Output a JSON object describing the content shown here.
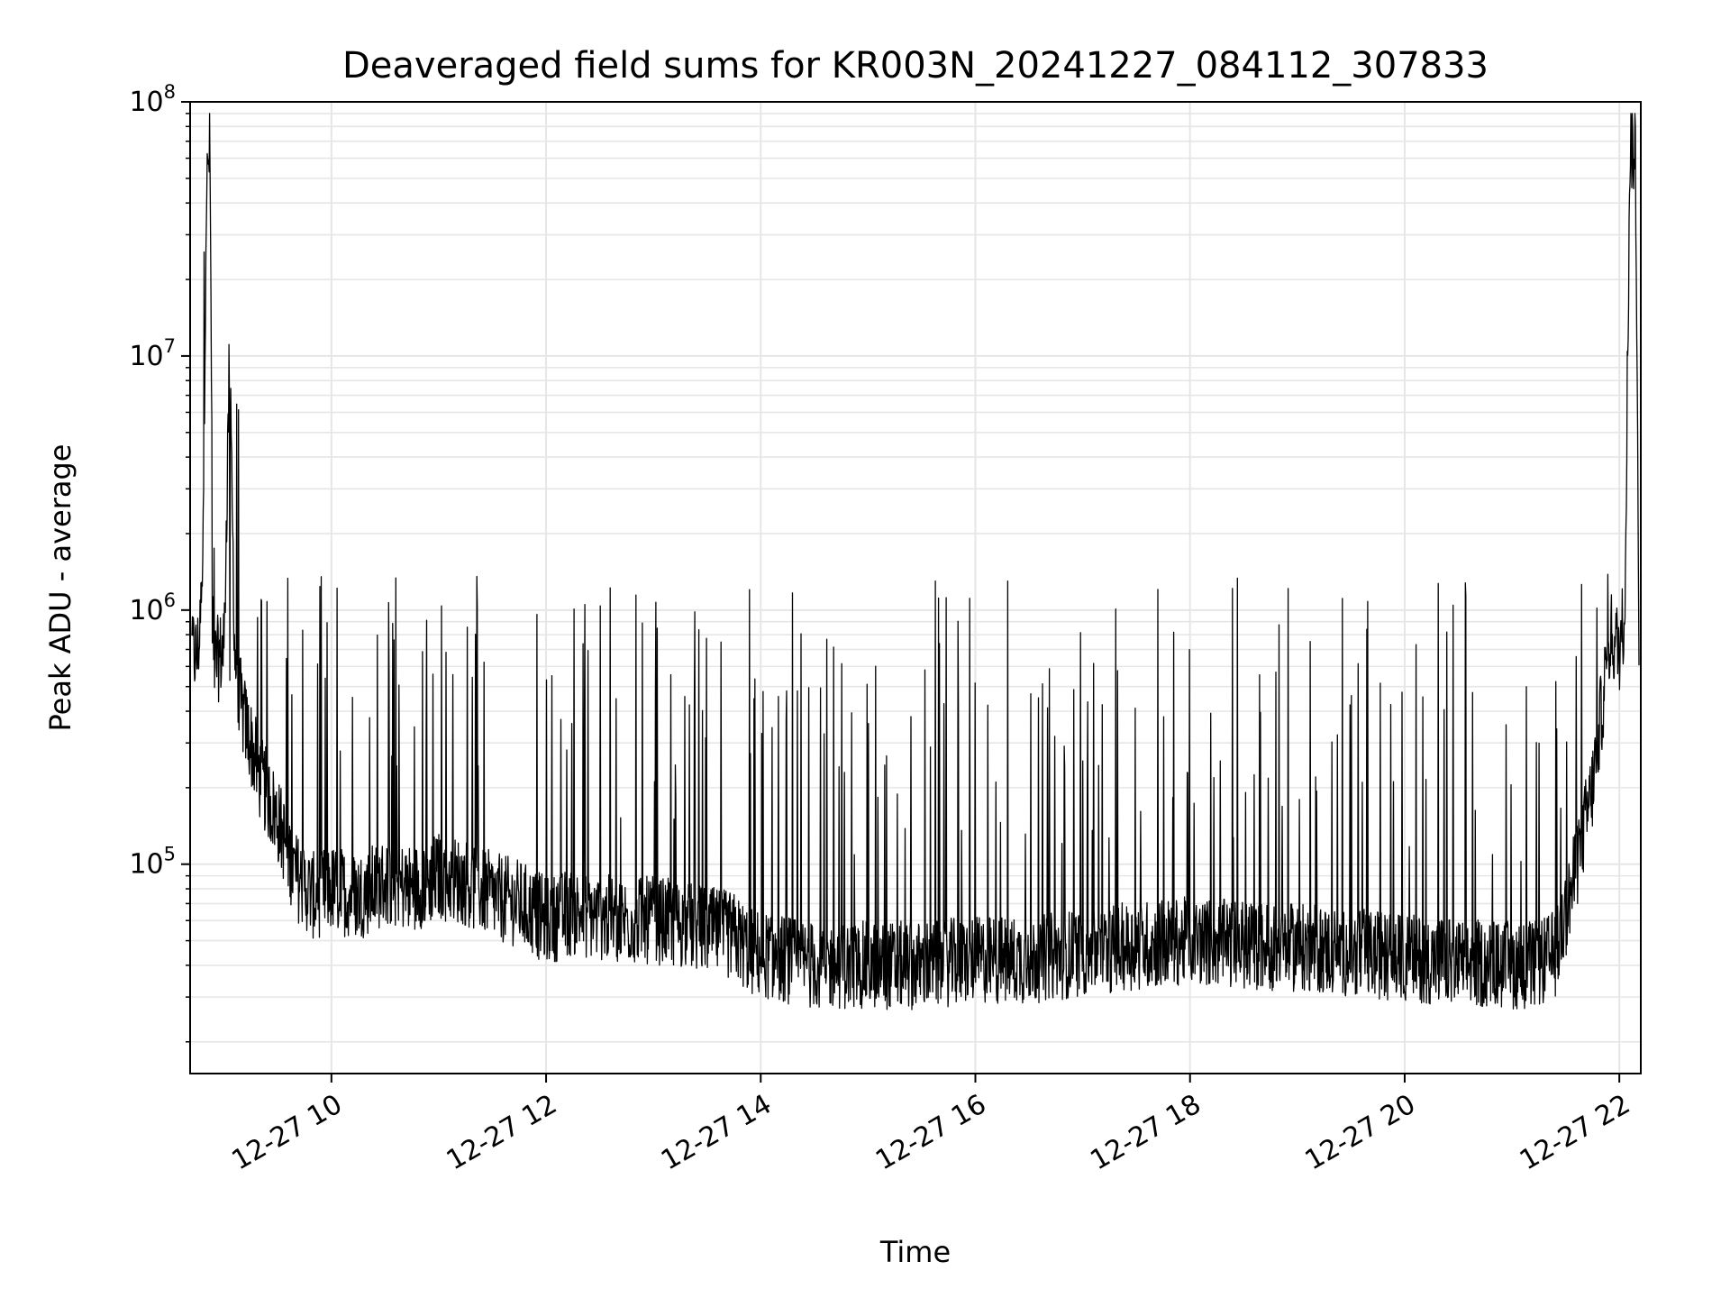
{
  "chart_data": {
    "type": "line",
    "title": "Deaveraged field sums for KR003N_20241227_084112_307833",
    "xlabel": "Time",
    "ylabel": "Peak ADU - average",
    "yscale": "log",
    "ylim": [
      15000,
      100000000
    ],
    "xlim": [
      "2024-12-27 08:41",
      "2024-12-27 22:12"
    ],
    "grid": true,
    "line_color": "#000000",
    "x_ticks": [
      {
        "value": "2024-12-27 10:00",
        "label": "12-27 10"
      },
      {
        "value": "2024-12-27 12:00",
        "label": "12-27 12"
      },
      {
        "value": "2024-12-27 14:00",
        "label": "12-27 14"
      },
      {
        "value": "2024-12-27 16:00",
        "label": "12-27 16"
      },
      {
        "value": "2024-12-27 18:00",
        "label": "12-27 18"
      },
      {
        "value": "2024-12-27 20:00",
        "label": "12-27 20"
      },
      {
        "value": "2024-12-27 22:00",
        "label": "12-27 22"
      }
    ],
    "y_ticks": [
      {
        "value": 100000,
        "base": "10",
        "exp": "5"
      },
      {
        "value": 1000000,
        "base": "10",
        "exp": "6"
      },
      {
        "value": 10000000,
        "base": "10",
        "exp": "7"
      },
      {
        "value": 100000000,
        "base": "10",
        "exp": "8"
      }
    ],
    "series": [
      {
        "x": [
          "2024-12-27 08:42",
          "2024-12-27 08:45",
          "2024-12-27 08:48",
          "2024-12-27 08:50",
          "2024-12-27 08:52",
          "2024-12-27 08:54",
          "2024-12-27 08:57",
          "2024-12-27 09:00",
          "2024-12-27 09:03",
          "2024-12-27 09:06",
          "2024-12-27 09:10",
          "2024-12-27 09:15",
          "2024-12-27 09:20",
          "2024-12-27 09:30",
          "2024-12-27 09:40",
          "2024-12-27 09:50",
          "2024-12-27 10:00",
          "2024-12-27 10:15",
          "2024-12-27 10:30",
          "2024-12-27 10:45",
          "2024-12-27 11:00",
          "2024-12-27 11:15",
          "2024-12-27 11:30",
          "2024-12-27 11:45",
          "2024-12-27 12:00",
          "2024-12-27 12:15",
          "2024-12-27 12:30",
          "2024-12-27 12:45",
          "2024-12-27 13:00",
          "2024-12-27 13:15",
          "2024-12-27 13:30",
          "2024-12-27 13:45",
          "2024-12-27 13:55",
          "2024-12-27 14:15",
          "2024-12-27 14:30",
          "2024-12-27 15:00",
          "2024-12-27 15:30",
          "2024-12-27 16:00",
          "2024-12-27 16:30",
          "2024-12-27 17:00",
          "2024-12-27 17:30",
          "2024-12-27 18:00",
          "2024-12-27 18:30",
          "2024-12-27 19:00",
          "2024-12-27 19:30",
          "2024-12-27 20:00",
          "2024-12-27 20:30",
          "2024-12-27 21:00",
          "2024-12-27 21:15",
          "2024-12-27 21:25",
          "2024-12-27 21:35",
          "2024-12-27 21:45",
          "2024-12-27 21:50",
          "2024-12-27 21:55",
          "2024-12-27 22:00",
          "2024-12-27 22:03",
          "2024-12-27 22:06",
          "2024-12-27 22:09",
          "2024-12-27 22:11"
        ],
        "y": [
          700000,
          650000,
          1200000,
          40000000,
          70000000,
          600000,
          650000,
          700000,
          10000000,
          650000,
          400000,
          300000,
          220000,
          150000,
          90000,
          75000,
          80000,
          75000,
          85000,
          80000,
          90000,
          85000,
          75000,
          70000,
          60000,
          65000,
          62000,
          60000,
          60000,
          58000,
          55000,
          52000,
          45000,
          42000,
          40000,
          40000,
          40000,
          42000,
          42000,
          45000,
          48000,
          50000,
          48000,
          47000,
          45000,
          43000,
          41000,
          40000,
          40000,
          45000,
          90000,
          200000,
          400000,
          800000,
          700000,
          1000000,
          70000000,
          60000000,
          900000
        ],
        "baseline_from_series": true
      }
    ]
  }
}
